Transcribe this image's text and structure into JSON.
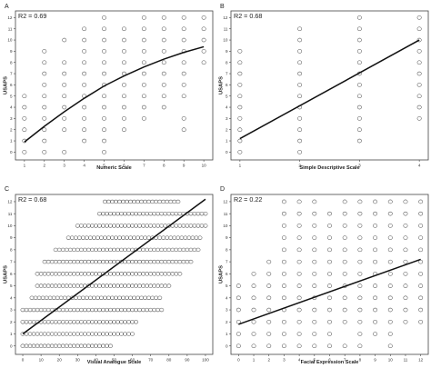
{
  "chart_data": [
    {
      "panel": "A",
      "type": "scatter",
      "r2": "R2 = 0.69",
      "xlabel": "Numeric Scale",
      "ylabel": "USAPS",
      "x_ticks": [
        1,
        2,
        3,
        4,
        5,
        6,
        7,
        8,
        9,
        10
      ],
      "y_ticks": [
        0,
        1,
        2,
        3,
        4,
        5,
        6,
        7,
        8,
        9,
        10,
        11,
        12
      ],
      "xlim": [
        0.55,
        10.45
      ],
      "ylim": [
        -0.7,
        12.6
      ],
      "points_by_x": {
        "1": [
          0,
          1,
          2,
          3,
          4,
          5
        ],
        "2": [
          0,
          1,
          2,
          3,
          4,
          5,
          6,
          7,
          8,
          9
        ],
        "3": [
          0,
          2,
          3,
          4,
          5,
          6,
          7,
          8,
          10
        ],
        "4": [
          1,
          2,
          3,
          4,
          5,
          6,
          7,
          8,
          9,
          10,
          11
        ],
        "5": [
          0,
          1,
          2,
          3,
          4,
          5,
          6,
          7,
          8,
          9,
          10,
          11,
          12
        ],
        "6": [
          2,
          3,
          4,
          5,
          6,
          7,
          8,
          9,
          10,
          11
        ],
        "7": [
          3,
          4,
          5,
          6,
          7,
          8,
          9,
          10,
          11,
          12
        ],
        "8": [
          4,
          5,
          6,
          7,
          8,
          9,
          10,
          11,
          12
        ],
        "9": [
          2,
          3,
          5,
          6,
          7,
          8,
          9,
          10,
          11,
          12
        ],
        "10": [
          8,
          9,
          10,
          11,
          12
        ]
      },
      "fit": {
        "kind": "curve",
        "x": [
          1,
          2,
          3,
          4,
          5,
          6,
          7,
          8,
          9,
          10
        ],
        "y": [
          0.9,
          2.3,
          3.6,
          4.8,
          5.9,
          6.8,
          7.6,
          8.3,
          8.9,
          9.4
        ]
      }
    },
    {
      "panel": "B",
      "type": "scatter",
      "r2": "R2 = 0.68",
      "xlabel": "Simple Descriptive Scale",
      "ylabel": "USAPS",
      "x_ticks": [
        1,
        2,
        3,
        4
      ],
      "y_ticks": [
        0,
        1,
        2,
        3,
        4,
        5,
        6,
        7,
        8,
        9,
        10,
        11,
        12
      ],
      "xlim": [
        0.85,
        4.15
      ],
      "ylim": [
        -0.7,
        12.6
      ],
      "points_by_x": {
        "1": [
          0,
          1,
          2,
          3,
          4,
          5,
          6,
          7,
          8,
          9
        ],
        "2": [
          0,
          1,
          2,
          3,
          4,
          5,
          6,
          7,
          8,
          9,
          10,
          11
        ],
        "3": [
          1,
          2,
          3,
          4,
          5,
          6,
          7,
          8,
          9,
          10,
          11,
          12
        ],
        "4": [
          3,
          4,
          5,
          6,
          7,
          8,
          9,
          10,
          11,
          12
        ]
      },
      "fit": {
        "kind": "line",
        "x": [
          1,
          4
        ],
        "y": [
          1.2,
          10.0
        ]
      }
    },
    {
      "panel": "C",
      "type": "scatter",
      "r2": "R2 = 0.68",
      "xlabel": "Visual Analogue Scale",
      "ylabel": "USAPS",
      "x_ticks": [
        0,
        10,
        20,
        30,
        40,
        50,
        60,
        70,
        80,
        90,
        100
      ],
      "y_ticks": [
        0,
        1,
        2,
        3,
        4,
        5,
        6,
        7,
        8,
        9,
        10,
        11,
        12
      ],
      "xlim": [
        -4,
        104
      ],
      "ylim": [
        -0.7,
        12.6
      ],
      "dense_rows": {
        "0": [
          0,
          48
        ],
        "1": [
          0,
          60
        ],
        "2": [
          0,
          62
        ],
        "3": [
          0,
          76
        ],
        "4": [
          5,
          76
        ],
        "5": [
          8,
          80
        ],
        "6": [
          8,
          86
        ],
        "7": [
          12,
          92
        ],
        "8": [
          18,
          96
        ],
        "9": [
          25,
          98
        ],
        "10": [
          30,
          100
        ],
        "11": [
          42,
          100
        ],
        "12": [
          45,
          86
        ]
      },
      "fit": {
        "kind": "line",
        "x": [
          0,
          100
        ],
        "y": [
          1.0,
          12.2
        ]
      }
    },
    {
      "panel": "D",
      "type": "scatter",
      "r2": "R2 = 0.22",
      "xlabel": "Facial Expression Scale",
      "ylabel": "USAPS",
      "x_ticks": [
        0,
        1,
        2,
        3,
        4,
        5,
        6,
        7,
        8,
        9,
        10,
        11,
        12
      ],
      "y_ticks": [
        0,
        1,
        2,
        3,
        4,
        5,
        6,
        7,
        8,
        9,
        10,
        11,
        12
      ],
      "xlim": [
        -0.5,
        12.5
      ],
      "ylim": [
        -0.7,
        12.6
      ],
      "points_by_x": {
        "0": [
          0,
          1,
          2,
          3,
          4,
          5
        ],
        "1": [
          0,
          1,
          2,
          3,
          4,
          5,
          6
        ],
        "2": [
          0,
          1,
          2,
          3,
          4,
          5,
          6,
          7
        ],
        "3": [
          0,
          1,
          2,
          3,
          4,
          5,
          6,
          7,
          8,
          9,
          10,
          11,
          12
        ],
        "4": [
          0,
          1,
          2,
          3,
          4,
          5,
          6,
          7,
          8,
          9,
          10,
          11,
          12
        ],
        "5": [
          0,
          1,
          2,
          3,
          4,
          5,
          6,
          7,
          8,
          9,
          10,
          11,
          12
        ],
        "6": [
          0,
          1,
          2,
          3,
          4,
          5,
          6,
          7,
          8,
          9,
          10,
          11
        ],
        "7": [
          0,
          2,
          3,
          4,
          5,
          6,
          7,
          8,
          9,
          10,
          11,
          12
        ],
        "8": [
          0,
          1,
          2,
          3,
          4,
          5,
          6,
          7,
          8,
          9,
          10,
          11,
          12
        ],
        "9": [
          1,
          2,
          3,
          4,
          5,
          6,
          7,
          8,
          9,
          10,
          11,
          12
        ],
        "10": [
          0,
          1,
          2,
          3,
          4,
          5,
          6,
          7,
          8,
          9,
          10,
          11,
          12
        ],
        "11": [
          2,
          3,
          4,
          5,
          6,
          7,
          8,
          9,
          10,
          11,
          12
        ],
        "12": [
          2,
          3,
          4,
          5,
          6,
          7,
          8,
          9,
          10,
          11,
          12
        ]
      },
      "fit": {
        "kind": "line",
        "x": [
          0,
          12
        ],
        "y": [
          1.8,
          7.2
        ]
      }
    }
  ]
}
